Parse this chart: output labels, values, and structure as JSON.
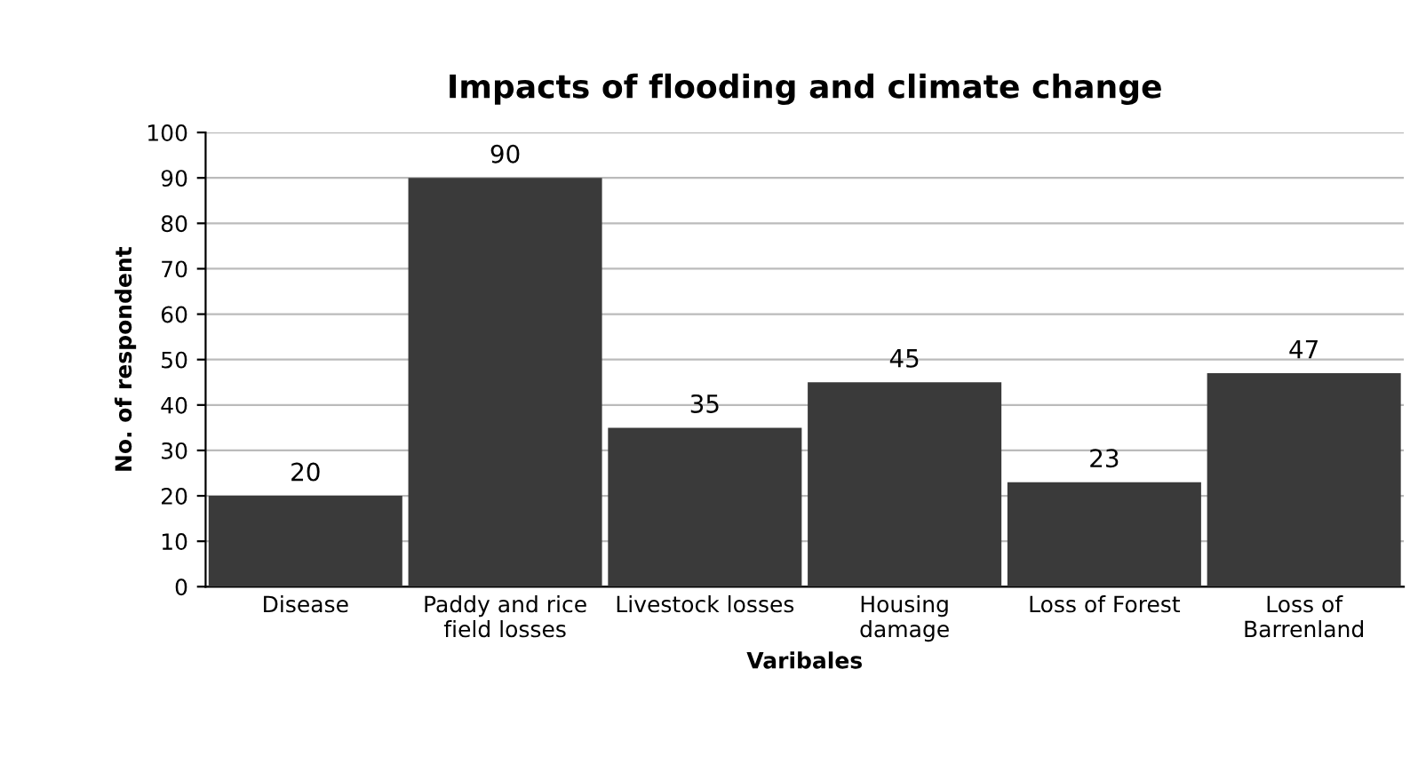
{
  "chart_data": {
    "type": "bar",
    "title": "Impacts of flooding and climate change",
    "xlabel": "Varibales",
    "ylabel": "No. of respondent",
    "categories": [
      "Disease",
      "Paddy and rice\nfield losses",
      "Livestock losses",
      "Housing\ndamage",
      "Loss of Forest",
      "Loss of\nBarrenland"
    ],
    "values": [
      20,
      90,
      35,
      45,
      23,
      47
    ],
    "color": "#3a3a3a",
    "ylim": [
      0,
      100
    ],
    "yticks": [
      0,
      10,
      20,
      30,
      40,
      50,
      60,
      70,
      80,
      90,
      100
    ],
    "grid": "y",
    "data_labels": true
  }
}
